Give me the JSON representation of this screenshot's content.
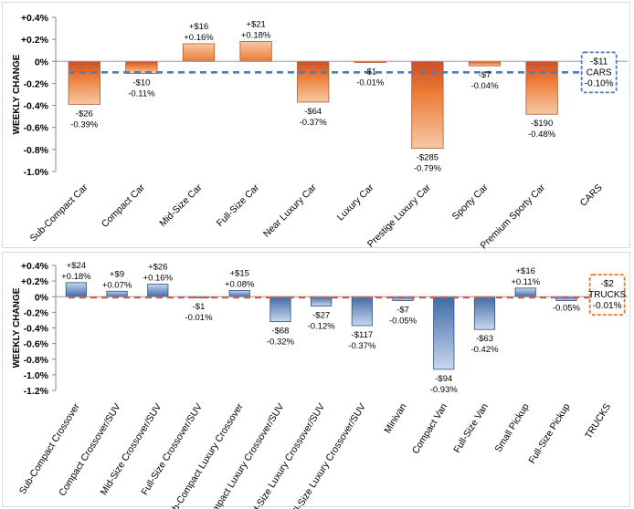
{
  "chart_data": [
    {
      "type": "bar",
      "ylabel": "WEEKLY CHANGE",
      "ylim": [
        -1.0,
        0.4
      ],
      "yticks": [
        "+0.4%",
        "+0.2%",
        "0%",
        "-0.2%",
        "-0.4%",
        "-0.6%",
        "-0.8%",
        "-1.0%"
      ],
      "categories": [
        "Sub-Compact Car",
        "Compact Car",
        "Mid-Size Car",
        "Full-Size Car",
        "Near Luxury Car",
        "Luxury Car",
        "Prestige Luxury Car",
        "Sporty Car",
        "Premium Sporty Car"
      ],
      "values": [
        -0.39,
        -0.11,
        0.16,
        0.18,
        -0.37,
        -0.01,
        -0.79,
        -0.04,
        -0.48
      ],
      "dollar_labels": [
        "-$26",
        "-$10",
        "+$16",
        "+$21",
        "-$64",
        "-$1",
        "-$285",
        "-$7",
        "-$190"
      ],
      "pct_labels": [
        "-0.39%",
        "-0.11%",
        "+0.16%",
        "+0.18%",
        "-0.37%",
        "-0.01%",
        "-0.79%",
        "-0.04%",
        "-0.48%"
      ],
      "aggregate": {
        "category": "CARS",
        "value": -0.1,
        "dollar": "-$11",
        "name": "CARS",
        "pct": "-0.10%",
        "color": "#4a7cc0"
      },
      "bar_colors": {
        "top": "#ec7a35",
        "bottom": "#f6c9a5",
        "deep": "#c8502a"
      },
      "grid": false
    },
    {
      "type": "bar",
      "ylabel": "WEEKLY CHANGE",
      "ylim": [
        -1.2,
        0.4
      ],
      "yticks": [
        "+0.4%",
        "+0.2%",
        "0%",
        "-0.2%",
        "-0.4%",
        "-0.6%",
        "-0.8%",
        "-1.0%",
        "-1.2%"
      ],
      "categories": [
        "Sub-Compact Crossover",
        "Compact Crossover/SUV",
        "Mid-Size Crossover/SUV",
        "Full-Size Crossover/SUV",
        "Sub-Compact Luxury Crossover",
        "Compact Luxury Crossover/SUV",
        "Mid-Size Luxury Crossover/SUV",
        "Full-Size Luxury Crossover/SUV",
        "Minivan",
        "Compact Van",
        "Full-Size Van",
        "Small Pickup",
        "Full-Size Pickup"
      ],
      "values": [
        0.18,
        0.07,
        0.16,
        -0.01,
        0.08,
        -0.32,
        -0.12,
        -0.37,
        -0.05,
        -0.93,
        -0.42,
        0.11,
        -0.05
      ],
      "dollar_labels": [
        "+$24",
        "+$9",
        "+$26",
        "-$1",
        "+$15",
        "-$68",
        "-$27",
        "-$117",
        "-$7",
        "-$94",
        "-$63",
        "+$16",
        ""
      ],
      "pct_labels": [
        "+0.18%",
        "+0.07%",
        "+0.16%",
        "-0.01%",
        "+0.08%",
        "-0.32%",
        "-0.12%",
        "-0.37%",
        "-0.05%",
        "-0.93%",
        "-0.42%",
        "+0.11%",
        "-0.05%"
      ],
      "aggregate": {
        "category": "TRUCKS",
        "value": -0.01,
        "dollar": "-$2",
        "name": "TRUCKS",
        "pct": "-0.01%",
        "color": "#e8782a",
        "line_color": "#d9534f"
      },
      "bar_colors": {
        "top": "#3e6aa6",
        "bottom": "#c8d8ee"
      },
      "grid": false
    }
  ]
}
